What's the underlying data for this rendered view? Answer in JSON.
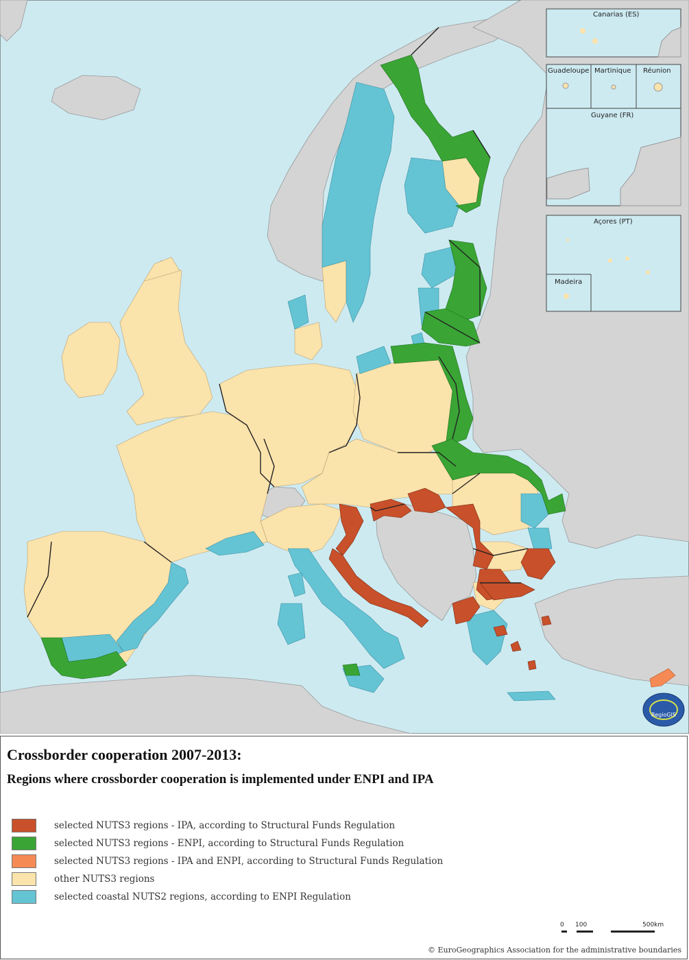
{
  "colors": {
    "sea": "#cdeaf1",
    "non_eu": "#d4d4d4",
    "ipa": "#c8502a",
    "enpi": "#3aa535",
    "ipa_enpi": "#f58a55",
    "other": "#fbe3ac",
    "coastal": "#64c4d4"
  },
  "map": {
    "insets": {
      "canarias": "Canarias (ES)",
      "guadeloupe": "Guadeloupe",
      "martinique": "Martinique",
      "reunion": "Réunion",
      "guyane": "Guyane (FR)",
      "acores": "Açores (PT)",
      "madeira": "Madeira"
    },
    "logo_text": "RegioGIS"
  },
  "legend": {
    "title": "Crossborder cooperation 2007-2013:",
    "subtitle": "Regions where crossborder cooperation is implemented under ENPI and IPA",
    "items": [
      {
        "label": "selected NUTS3 regions - IPA, according to Structural Funds Regulation",
        "color": "#c8502a"
      },
      {
        "label": "selected NUTS3 regions - ENPI, according to Structural Funds Regulation",
        "color": "#3aa535"
      },
      {
        "label": "selected NUTS3 regions - IPA and ENPI, according to Structural Funds Regulation",
        "color": "#f58a55"
      },
      {
        "label": "other NUTS3 regions",
        "color": "#fbe3ac"
      },
      {
        "label": "selected coastal NUTS2 regions, according to ENPI Regulation",
        "color": "#64c4d4"
      }
    ]
  },
  "scale_bar": {
    "zero": "0",
    "mid": "100",
    "end": "500km"
  },
  "copyright": "© EuroGeographics Association for the administrative boundaries"
}
